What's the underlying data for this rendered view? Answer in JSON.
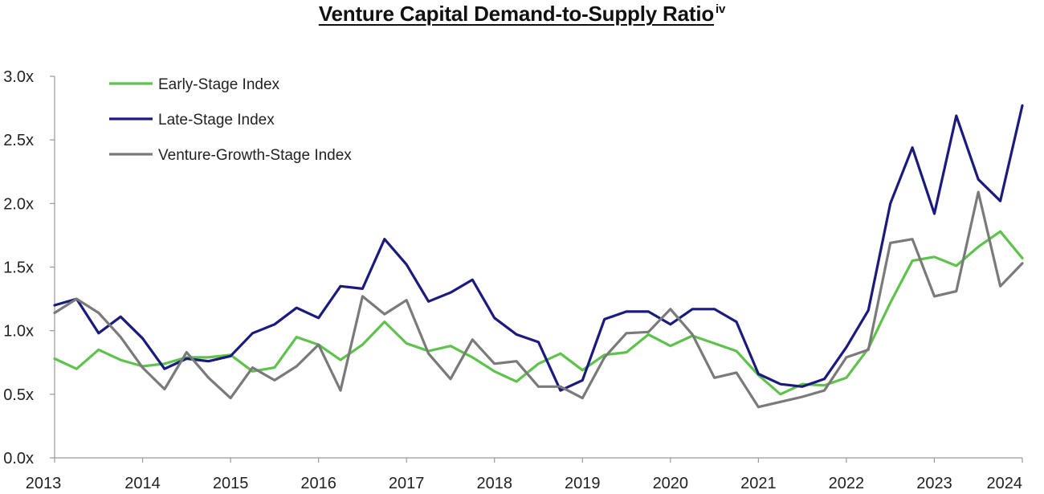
{
  "title": "Venture Capital Demand-to-Supply Ratio",
  "title_superscript": "iv",
  "chart_data": {
    "type": "line",
    "title": "Venture Capital Demand-to-Supply Ratio",
    "xlabel": "",
    "ylabel": "",
    "x_ticks": [
      "2013",
      "2014",
      "2015",
      "2016",
      "2017",
      "2018",
      "2019",
      "2020",
      "2021",
      "2022",
      "2023",
      "2024"
    ],
    "y_ticks": [
      "0.0x",
      "0.5x",
      "1.0x",
      "1.5x",
      "2.0x",
      "2.5x",
      "3.0x"
    ],
    "ylim": [
      0,
      3.0
    ],
    "xlim": [
      2013,
      2024
    ],
    "grid": false,
    "legend_position": "top-left",
    "x": [
      2013.0,
      2013.25,
      2013.5,
      2013.75,
      2014.0,
      2014.25,
      2014.5,
      2014.75,
      2015.0,
      2015.25,
      2015.5,
      2015.75,
      2016.0,
      2016.25,
      2016.5,
      2016.75,
      2017.0,
      2017.25,
      2017.5,
      2017.75,
      2018.0,
      2018.25,
      2018.5,
      2018.75,
      2019.0,
      2019.25,
      2019.5,
      2019.75,
      2020.0,
      2020.25,
      2020.5,
      2020.75,
      2021.0,
      2021.25,
      2021.5,
      2021.75,
      2022.0,
      2022.25,
      2022.5,
      2022.75,
      2023.0,
      2023.25,
      2023.5,
      2023.75,
      2024.0
    ],
    "series": [
      {
        "name": "Early-Stage Index",
        "color": "#5ec24d",
        "values": [
          0.78,
          0.7,
          0.85,
          0.77,
          0.72,
          0.74,
          0.79,
          0.79,
          0.81,
          0.68,
          0.71,
          0.95,
          0.89,
          0.77,
          0.89,
          1.07,
          0.9,
          0.84,
          0.88,
          0.79,
          0.68,
          0.6,
          0.74,
          0.82,
          0.69,
          0.81,
          0.83,
          0.97,
          0.88,
          0.96,
          0.9,
          0.84,
          0.65,
          0.5,
          0.58,
          0.57,
          0.63,
          0.86,
          1.22,
          1.55,
          1.58,
          1.51,
          1.66,
          1.78,
          1.57
        ]
      },
      {
        "name": "Late-Stage Index",
        "color": "#1b1a7e",
        "values": [
          1.2,
          1.25,
          0.98,
          1.11,
          0.94,
          0.7,
          0.78,
          0.76,
          0.8,
          0.98,
          1.05,
          1.18,
          1.1,
          1.35,
          1.33,
          1.72,
          1.52,
          1.23,
          1.3,
          1.4,
          1.1,
          0.97,
          0.91,
          0.53,
          0.61,
          1.09,
          1.15,
          1.15,
          1.05,
          1.17,
          1.17,
          1.07,
          0.66,
          0.58,
          0.56,
          0.62,
          0.87,
          1.16,
          2.0,
          2.44,
          1.92,
          2.69,
          2.19,
          2.02,
          2.77
        ]
      },
      {
        "name": "Venture-Growth-Stage Index",
        "color": "#7a7a7a",
        "values": [
          1.14,
          1.25,
          1.14,
          0.95,
          0.71,
          0.54,
          0.83,
          0.63,
          0.47,
          0.71,
          0.61,
          0.72,
          0.89,
          0.53,
          1.27,
          1.13,
          1.24,
          0.82,
          0.62,
          0.93,
          0.74,
          0.76,
          0.56,
          0.56,
          0.47,
          0.79,
          0.98,
          0.99,
          1.17,
          0.97,
          0.63,
          0.67,
          0.4,
          0.44,
          0.48,
          0.53,
          0.79,
          0.85,
          1.69,
          1.72,
          1.27,
          1.31,
          2.09,
          1.35,
          1.53
        ]
      }
    ]
  }
}
